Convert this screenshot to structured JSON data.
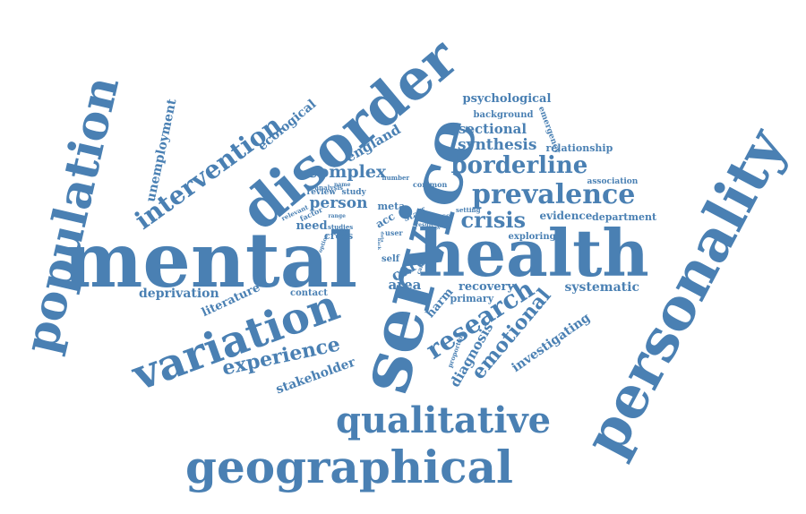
{
  "color": "#4a80b3",
  "background": "#ffffff",
  "words": [
    "mental",
    "health",
    "personality",
    "service",
    "disorder",
    "population",
    "geographical",
    "qualitative",
    "variation",
    "prevalence",
    "borderline",
    "research",
    "crisis",
    "intervention",
    "experience",
    "emotional",
    "unemployment",
    "deprivation",
    "literature",
    "stakeholder",
    "diagnosis",
    "investigating",
    "systematic",
    "england",
    "complex",
    "synthesis",
    "sectional",
    "psychological",
    "background",
    "ecological",
    "person",
    "care",
    "area",
    "recovery",
    "harm",
    "primary",
    "contact",
    "evidence",
    "department",
    "relationship",
    "association",
    "emergency",
    "exploring",
    "need",
    "cross",
    "review",
    "study",
    "meta",
    "staff",
    "illness",
    "user",
    "self",
    "factor",
    "analysis",
    "relevant",
    "common",
    "number",
    "setting",
    "range",
    "name",
    "studies",
    "option",
    "result",
    "carer",
    "proportion",
    "acc",
    "back",
    "data",
    "scope"
  ]
}
